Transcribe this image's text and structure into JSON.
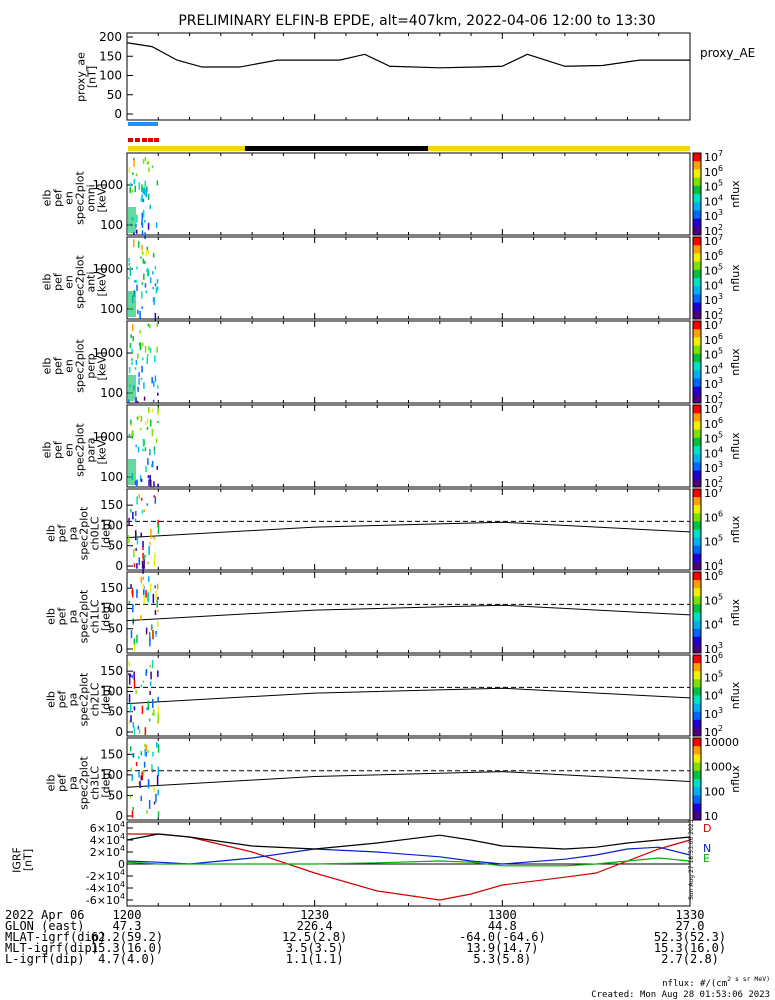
{
  "title": "PRELIMINARY ELFIN-B EPDE, alt=407km, 2022-04-06 12:00 to 13:30",
  "colors": {
    "axis": "#000000",
    "ae_line": "#000000",
    "bar_blue": "#1e90ff",
    "bar_red": "#e00000",
    "bar_yellow": "#f5d60a",
    "bar_black": "#000000",
    "igrf_D": "#d00000",
    "igrf_N": "#0020d0",
    "igrf_E": "#00b000"
  },
  "chart_data": [
    {
      "type": "line",
      "id": "proxy_ae",
      "ylabel": "proxy_ae\n[nT]",
      "legend": "proxy_AE",
      "ylim": [
        0,
        210
      ],
      "yticks": [
        "0",
        "50",
        "100",
        "150",
        "200"
      ],
      "x_minutes": [
        0,
        4,
        8,
        12,
        18,
        24,
        30,
        34,
        38,
        42,
        50,
        56,
        60,
        64,
        70,
        76,
        82,
        90
      ],
      "values": [
        185,
        175,
        140,
        122,
        122,
        140,
        140,
        140,
        155,
        124,
        120,
        122,
        124,
        155,
        124,
        126,
        140,
        140
      ]
    },
    {
      "type": "heatmap",
      "id": "spec_omni",
      "ylabel": "elb\npef\nen\nspec2plot\nomni\n[keV]",
      "yticks": [
        "100",
        "1000"
      ],
      "ylog": true,
      "colorbar_label": "nflux",
      "colorbar_ticks": [
        "10^2",
        "10^3",
        "10^4",
        "10^5",
        "10^6",
        "10^7"
      ]
    },
    {
      "type": "heatmap",
      "id": "spec_anti",
      "ylabel": "elb\npef\nen\nspec2plot\nanti\n[keV]",
      "yticks": [
        "100",
        "1000"
      ],
      "ylog": true,
      "colorbar_label": "nflux",
      "colorbar_ticks": [
        "10^2",
        "10^3",
        "10^4",
        "10^5",
        "10^6",
        "10^7"
      ]
    },
    {
      "type": "heatmap",
      "id": "spec_perp",
      "ylabel": "elb\npef\nen\nspec2plot\nperp\n[keV]",
      "yticks": [
        "100",
        "1000"
      ],
      "ylog": true,
      "colorbar_label": "nflux",
      "colorbar_ticks": [
        "10^2",
        "10^3",
        "10^4",
        "10^5",
        "10^6",
        "10^7"
      ]
    },
    {
      "type": "heatmap",
      "id": "spec_para",
      "ylabel": "elb\npef\nen\nspec2plot\npara\n[keV]",
      "yticks": [
        "100",
        "1000"
      ],
      "ylog": true,
      "colorbar_label": "nflux",
      "colorbar_ticks": [
        "10^2",
        "10^3",
        "10^4",
        "10^5",
        "10^6",
        "10^7"
      ]
    },
    {
      "type": "heatmap",
      "id": "pa_ch0",
      "ylabel": "elb\npef\npa\nspec2plot\nch0LC\n[deg]",
      "ylim": [
        0,
        180
      ],
      "yticks": [
        "0",
        "50",
        "100",
        "150"
      ],
      "colorbar_label": "nflux",
      "colorbar_ticks": [
        "10^4",
        "10^5",
        "10^6",
        "10^7"
      ],
      "lc_line_x_minutes": [
        0,
        30,
        60,
        90
      ],
      "lc_line_deg": [
        70,
        96,
        108,
        84
      ],
      "dashed_deg": 110
    },
    {
      "type": "heatmap",
      "id": "pa_ch1",
      "ylabel": "elb\npef\npa\nspec2plot\nch1LC\n[deg]",
      "ylim": [
        0,
        180
      ],
      "yticks": [
        "0",
        "50",
        "100",
        "150"
      ],
      "colorbar_label": "nflux",
      "colorbar_ticks": [
        "10^3",
        "10^4",
        "10^5",
        "10^6"
      ],
      "lc_line_x_minutes": [
        0,
        30,
        60,
        90
      ],
      "lc_line_deg": [
        70,
        96,
        108,
        84
      ],
      "dashed_deg": 110
    },
    {
      "type": "heatmap",
      "id": "pa_ch2",
      "ylabel": "elb\npef\npa\nspec2plot\nch2LC\n[deg]",
      "ylim": [
        0,
        180
      ],
      "yticks": [
        "0",
        "50",
        "100",
        "150"
      ],
      "colorbar_label": "nflux",
      "colorbar_ticks": [
        "10^2",
        "10^3",
        "10^4",
        "10^5",
        "10^6"
      ],
      "lc_line_x_minutes": [
        0,
        30,
        60,
        90
      ],
      "lc_line_deg": [
        70,
        96,
        108,
        84
      ],
      "dashed_deg": 110
    },
    {
      "type": "heatmap",
      "id": "pa_ch3",
      "ylabel": "elb\npef\npa\nspec2plot\nch3LC\n[deg]",
      "ylim": [
        0,
        180
      ],
      "yticks": [
        "0",
        "50",
        "100",
        "150"
      ],
      "colorbar_label": "nflux",
      "colorbar_ticks": [
        "10",
        "100",
        "1000",
        "10000"
      ],
      "lc_line_x_minutes": [
        0,
        30,
        60,
        90
      ],
      "lc_line_deg": [
        70,
        96,
        108,
        84
      ],
      "dashed_deg": 110
    },
    {
      "type": "line",
      "id": "igrf",
      "ylabel": "IGRF\n[nT]",
      "ylim": [
        -70000,
        70000
      ],
      "yticks": [
        "-6×10^4",
        "-4×10^4",
        "-2×10^4",
        "0",
        "2×10^4",
        "4×10^4",
        "6×10^4"
      ],
      "x_minutes": [
        0,
        5,
        10,
        20,
        30,
        40,
        50,
        55,
        60,
        70,
        75,
        80,
        85,
        90
      ],
      "series": [
        {
          "name": "D",
          "values": [
            50000,
            50000,
            45000,
            20000,
            -15000,
            -45000,
            -60000,
            -50000,
            -35000,
            -22000,
            -15000,
            5000,
            25000,
            40000
          ]
        },
        {
          "name": "N",
          "values": [
            5000,
            3000,
            0,
            10000,
            25000,
            20000,
            12000,
            5000,
            0,
            8000,
            15000,
            25000,
            28000,
            15000
          ]
        },
        {
          "name": "E",
          "values": [
            3000,
            0,
            0,
            0,
            0,
            2000,
            5000,
            3000,
            -3000,
            -3000,
            0,
            5000,
            10000,
            5000
          ]
        },
        {
          "name": "",
          "values": [
            40000,
            50000,
            45000,
            30000,
            25000,
            35000,
            48000,
            40000,
            30000,
            25000,
            28000,
            35000,
            40000,
            45000
          ]
        }
      ]
    }
  ],
  "time_axis": {
    "tick_labels": [
      "1200",
      "1230",
      "1300",
      "1330"
    ],
    "date_label": "2022 Apr 06",
    "rows": [
      {
        "label": "GLON (east)",
        "values": [
          "47.3",
          "226.4",
          "44.8",
          "27.0"
        ]
      },
      {
        "label": "MLAT-igrf(dip)",
        "values": [
          "62.2(59.2)",
          "12.5(2.8)",
          "-64.0(-64.6)",
          "52.3(52.3)"
        ]
      },
      {
        "label": "MLT-igrf(dip)",
        "values": [
          "15.3(16.0)",
          "3.5(3.5)",
          "13.9(14.7)",
          "15.3(16.0)"
        ]
      },
      {
        "label": "L-igrf(dip)",
        "values": [
          "4.7(4.0)",
          "1.1(1.1)",
          "5.3(5.8)",
          "2.7(2.8)"
        ]
      }
    ]
  },
  "footer": {
    "units": "nflux: #/(cm^2 s sr MeV)",
    "created": "Created: Mon Aug 28 01:53:06 2023",
    "side_stamp": "Sun Aug 27 18:53:06 2023"
  }
}
